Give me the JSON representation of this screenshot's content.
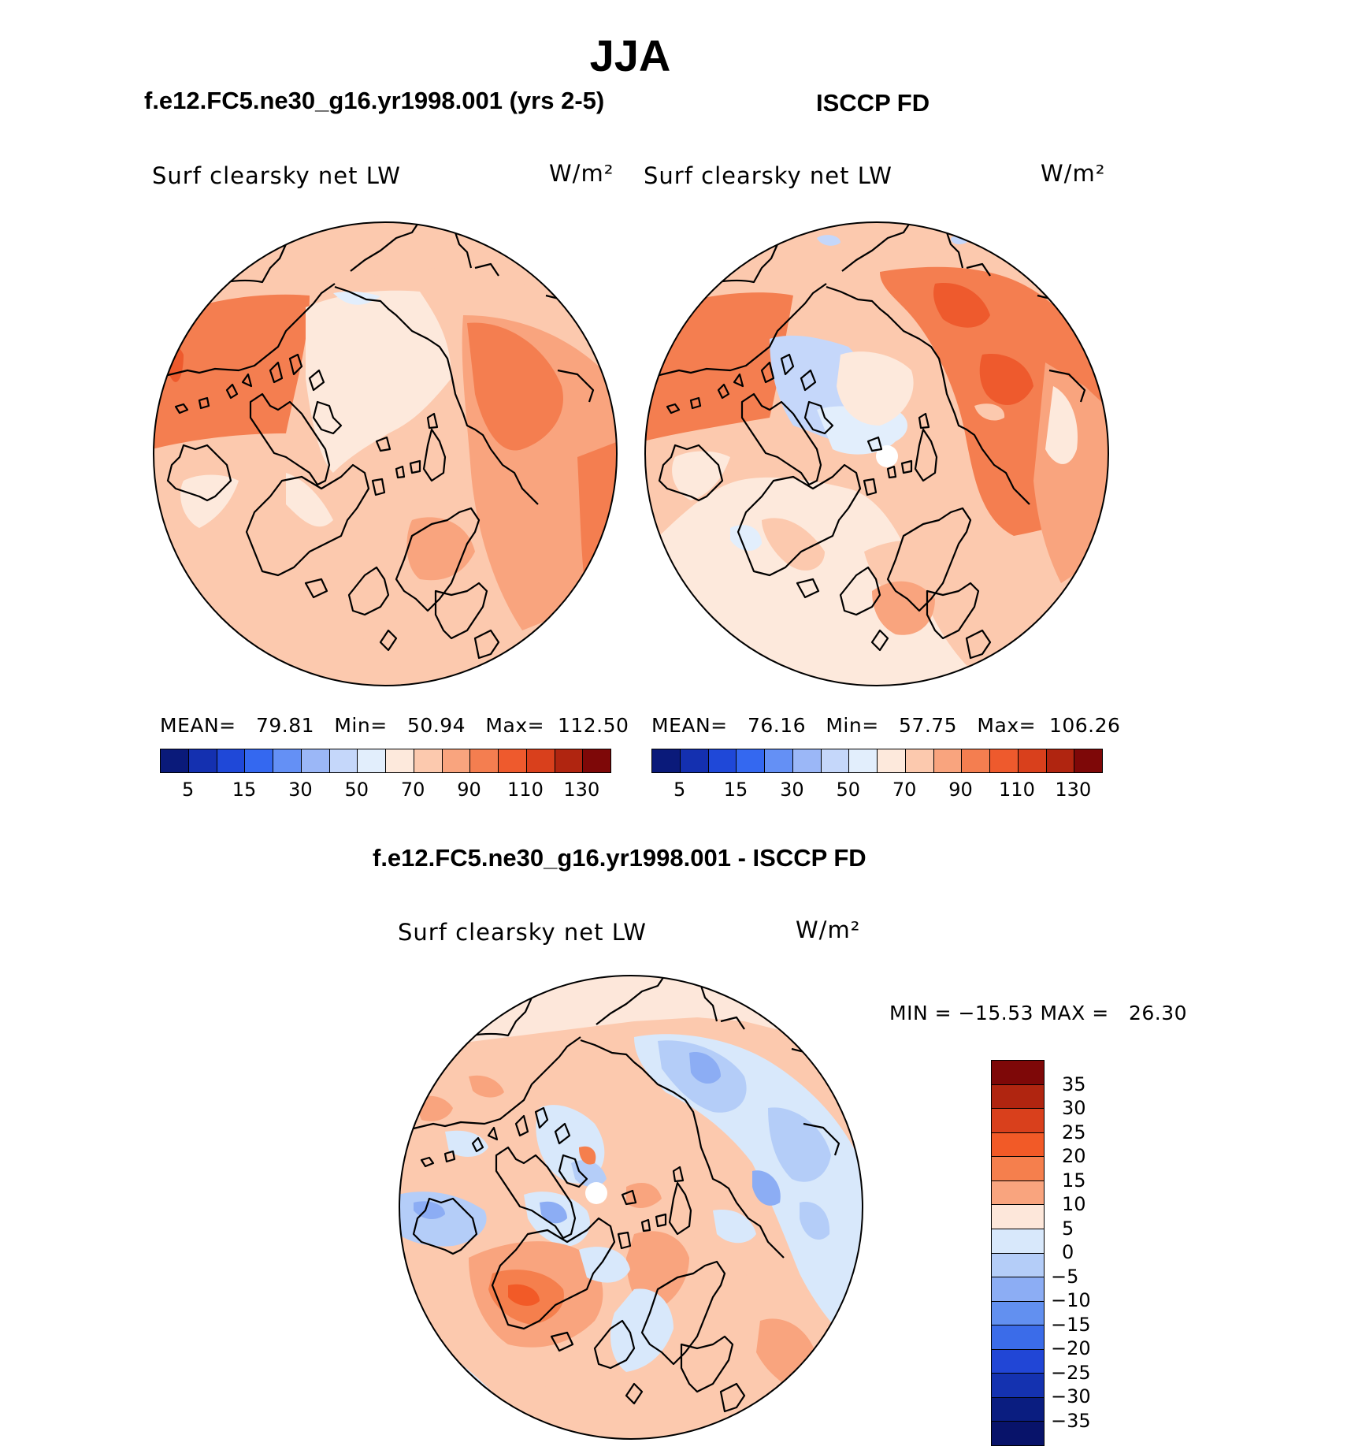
{
  "title": "JJA",
  "panels": [
    {
      "header": "f.e12.FC5.ne30_g16.yr1998.001 (yrs 2-5)",
      "variable": "Surf clearsky net LW",
      "units": "W/m²",
      "stats": "MEAN=   79.81   Min=   50.94   Max=  112.50"
    },
    {
      "header": "ISCCP FD",
      "variable": "Surf clearsky net LW",
      "units": "W/m²",
      "stats": "MEAN=   76.16   Min=   57.75   Max=  106.26"
    }
  ],
  "diff": {
    "header": "f.e12.FC5.ne30_g16.yr1998.001 - ISCCP FD",
    "variable": "Surf clearsky net LW",
    "units": "W/m²",
    "minmax": "MIN = −15.53 MAX =   26.30"
  },
  "abs_colorbar": {
    "colors": [
      "#0a1a7a",
      "#1430b0",
      "#1f48d8",
      "#3468f0",
      "#6490f5",
      "#9bb7f7",
      "#c5d7fa",
      "#e2eefc",
      "#fde9dc",
      "#fcc9ae",
      "#f9a47e",
      "#f47e50",
      "#ee5a2d",
      "#d9401c",
      "#b02510",
      "#7e0808"
    ],
    "ticks": [
      "5",
      "15",
      "30",
      "50",
      "70",
      "90",
      "110",
      "130"
    ]
  },
  "diff_colorbar": {
    "colors": [
      "#7e0808",
      "#b02510",
      "#d9401c",
      "#f25a27",
      "#f57f4d",
      "#f9a47e",
      "#fde7da",
      "#d8e8fb",
      "#b4cdf8",
      "#8cadf4",
      "#6290f0",
      "#3b6ce9",
      "#2146d6",
      "#1432b0",
      "#0a1d80"
    ],
    "ticks": [
      "35",
      "30",
      "25",
      "20",
      "15",
      "10",
      "5",
      "0",
      "−5",
      "−10",
      "−15",
      "−20",
      "−25",
      "−30",
      "−35"
    ]
  },
  "chart_data": [
    {
      "type": "heatmap",
      "title": "f.e12.FC5.ne30_g16.yr1998.001 (yrs 2-5)",
      "variable": "Surf clearsky net LW",
      "units": "W/m²",
      "projection": "north polar stereographic",
      "mean": 79.81,
      "min": 50.94,
      "max": 112.5,
      "levels": [
        5,
        15,
        30,
        50,
        70,
        90,
        110,
        130
      ]
    },
    {
      "type": "heatmap",
      "title": "ISCCP FD",
      "variable": "Surf clearsky net LW",
      "units": "W/m²",
      "projection": "north polar stereographic",
      "mean": 76.16,
      "min": 57.75,
      "max": 106.26,
      "levels": [
        5,
        15,
        30,
        50,
        70,
        90,
        110,
        130
      ]
    },
    {
      "type": "heatmap",
      "title": "f.e12.FC5.ne30_g16.yr1998.001 - ISCCP FD",
      "variable": "Surf clearsky net LW",
      "units": "W/m²",
      "projection": "north polar stereographic",
      "min": -15.53,
      "max": 26.3,
      "levels": [
        -35,
        -30,
        -25,
        -20,
        -15,
        -10,
        -5,
        0,
        5,
        10,
        15,
        20,
        25,
        30,
        35
      ]
    }
  ]
}
